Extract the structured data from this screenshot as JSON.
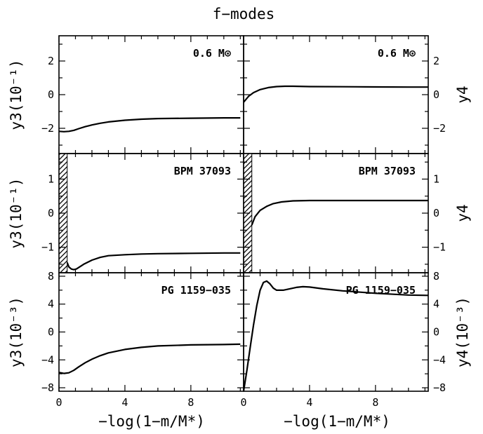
{
  "chart_data": {
    "type": "line",
    "title": "f−modes",
    "xlabel": "−log(1−m/M*)",
    "xlim": [
      0,
      11.2
    ],
    "xticks": [
      0,
      4,
      8
    ],
    "xtick_labels": [
      "0",
      "4",
      "8"
    ],
    "panels": [
      {
        "id": "r0c0",
        "row": 0,
        "col": 0,
        "label": "0.6 M⊙",
        "ylabel_main": "y3",
        "ylabel_unit": "(10⁻¹)",
        "ylabel_side": "left",
        "ylim": [
          -3.5,
          3.5
        ],
        "yticks": [
          -2,
          0,
          2
        ],
        "ytick_labels": [
          "−2",
          "0",
          "2"
        ],
        "series": [
          {
            "x": [
              0,
              0.3,
              0.6,
              0.9,
              1.2,
              1.6,
              2.0,
              2.5,
              3,
              4,
              5,
              6,
              8,
              10,
              11
            ],
            "y": [
              -2.18,
              -2.2,
              -2.18,
              -2.12,
              -2.02,
              -1.9,
              -1.8,
              -1.7,
              -1.62,
              -1.52,
              -1.46,
              -1.42,
              -1.4,
              -1.38,
              -1.38
            ]
          }
        ]
      },
      {
        "id": "r0c1",
        "row": 0,
        "col": 1,
        "label": "0.6 M⊙",
        "ylabel_main": "y4",
        "ylabel_unit": "",
        "ylabel_side": "right",
        "ylim": [
          -3.5,
          3.5
        ],
        "yticks": [
          -2,
          0,
          2
        ],
        "ytick_labels": [
          "−2",
          "0",
          "2"
        ],
        "series": [
          {
            "x": [
              0,
              0.3,
              0.6,
              1.0,
              1.5,
              2.0,
              2.5,
              3,
              4,
              6,
              8,
              10,
              11.2
            ],
            "y": [
              -0.45,
              -0.1,
              0.12,
              0.3,
              0.42,
              0.48,
              0.5,
              0.5,
              0.48,
              0.47,
              0.46,
              0.45,
              0.45
            ]
          }
        ]
      },
      {
        "id": "r1c0",
        "row": 1,
        "col": 0,
        "label": "BPM 37093",
        "ylabel_main": "y3",
        "ylabel_unit": "(10⁻¹)",
        "ylabel_side": "left",
        "ylim": [
          -1.75,
          1.75
        ],
        "yticks": [
          -1,
          0,
          1
        ],
        "ytick_labels": [
          "−1",
          "0",
          "1"
        ],
        "hatch_x": [
          0,
          0.5
        ],
        "series": [
          {
            "x": [
              0.5,
              0.6,
              0.75,
              0.9,
              1.05,
              1.25,
              1.5,
              2.0,
              2.5,
              3,
              4,
              5,
              6,
              8,
              10,
              11
            ],
            "y": [
              -1.45,
              -1.58,
              -1.64,
              -1.66,
              -1.64,
              -1.58,
              -1.5,
              -1.38,
              -1.3,
              -1.25,
              -1.22,
              -1.2,
              -1.19,
              -1.18,
              -1.17,
              -1.17
            ]
          }
        ]
      },
      {
        "id": "r1c1",
        "row": 1,
        "col": 1,
        "label": "BPM 37093",
        "ylabel_main": "y4",
        "ylabel_unit": "",
        "ylabel_side": "right",
        "ylim": [
          -1.75,
          1.75
        ],
        "yticks": [
          -1,
          0,
          1
        ],
        "ytick_labels": [
          "−1",
          "0",
          "1"
        ],
        "hatch_x": [
          0,
          0.5
        ],
        "series": [
          {
            "x": [
              0.5,
              0.7,
              1.0,
              1.4,
              1.8,
              2.3,
              3,
              4,
              6,
              8,
              10,
              11.2
            ],
            "y": [
              -0.35,
              -0.1,
              0.08,
              0.2,
              0.28,
              0.33,
              0.36,
              0.37,
              0.37,
              0.37,
              0.37,
              0.37
            ]
          }
        ]
      },
      {
        "id": "r2c0",
        "row": 2,
        "col": 0,
        "label": "PG 1159−035",
        "ylabel_main": "y3",
        "ylabel_unit": "(10⁻³)",
        "ylabel_side": "left",
        "ylim": [
          -8.5,
          8.5
        ],
        "yticks": [
          -8,
          -4,
          0,
          4,
          8
        ],
        "ytick_labels": [
          "−8",
          "−4",
          "0",
          "4",
          "8"
        ],
        "series": [
          {
            "x": [
              0,
              0.3,
              0.6,
              0.9,
              1.2,
              1.6,
              2.0,
              2.5,
              3,
              4,
              5,
              6,
              8,
              10,
              11
            ],
            "y": [
              -5.8,
              -5.95,
              -5.85,
              -5.5,
              -5.0,
              -4.4,
              -3.9,
              -3.4,
              -3.0,
              -2.5,
              -2.2,
              -2.0,
              -1.85,
              -1.8,
              -1.75
            ]
          }
        ]
      },
      {
        "id": "r2c1",
        "row": 2,
        "col": 1,
        "label": "PG 1159−035",
        "ylabel_main": "y4",
        "ylabel_unit": "(10⁻³)",
        "ylabel_side": "right",
        "ylim": [
          -8.5,
          8.5
        ],
        "yticks": [
          -8,
          -4,
          0,
          4,
          8
        ],
        "ytick_labels": [
          "−8",
          "−4",
          "0",
          "4",
          "8"
        ],
        "series": [
          {
            "x": [
              0,
              0.2,
              0.4,
              0.6,
              0.8,
              1.0,
              1.2,
              1.4,
              1.6,
              1.8,
              2.0,
              2.4,
              2.8,
              3.2,
              3.6,
              4.0,
              4.8,
              6,
              8,
              10,
              11.2
            ],
            "y": [
              -8.5,
              -5.5,
              -2.2,
              1.0,
              3.8,
              6.0,
              7.1,
              7.3,
              6.9,
              6.3,
              6.0,
              6.0,
              6.2,
              6.4,
              6.5,
              6.45,
              6.2,
              5.9,
              5.55,
              5.3,
              5.25
            ]
          }
        ]
      }
    ]
  }
}
